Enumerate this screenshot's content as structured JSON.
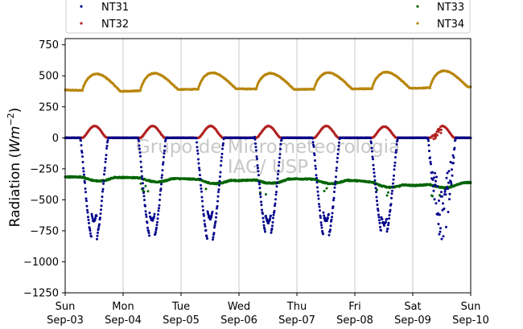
{
  "chart_data": {
    "type": "scatter",
    "title": "",
    "xlabel": "",
    "ylabel": "Radiation (Wm⁻²)",
    "ylabel_parts": {
      "main": "Radiation (",
      "unit": "Wm",
      "exp": "−2",
      "close": ")"
    },
    "ylim": [
      -1250,
      800
    ],
    "yticks": [
      -1250,
      -1000,
      -750,
      -500,
      -250,
      0,
      250,
      500,
      750
    ],
    "ytick_labels": [
      "−1250",
      "−1000",
      "−750",
      "−500",
      "−250",
      "0",
      "250",
      "500",
      "750"
    ],
    "xlim": [
      0,
      7
    ],
    "x_units": "days from Sun Sep-03 00:00",
    "xticks": [
      {
        "x": 0,
        "day": "Sun",
        "date": "Sep-03"
      },
      {
        "x": 1,
        "day": "Mon",
        "date": "Sep-04"
      },
      {
        "x": 2,
        "day": "Tue",
        "date": "Sep-05"
      },
      {
        "x": 3,
        "day": "Wed",
        "date": "Sep-06"
      },
      {
        "x": 4,
        "day": "Thu",
        "date": "Sep-07"
      },
      {
        "x": 5,
        "day": "Fri",
        "date": "Sep-08"
      },
      {
        "x": 6,
        "day": "Sat",
        "date": "Sep-09"
      },
      {
        "x": 7,
        "day": "Sun",
        "date": "Sep-10"
      }
    ],
    "grid": "vertical",
    "legend_placement": "top",
    "watermark": [
      "Grupo de Micrometeorologia",
      "IAG/ USP"
    ],
    "series": [
      {
        "name": "NT31",
        "color": "#00008b",
        "baseline": 0,
        "days": [
          {
            "day": 0,
            "start": 0.26,
            "end": 0.74,
            "min": -860,
            "peak_pos": 0.3,
            "secondary": -610
          },
          {
            "day": 1,
            "start": 0.26,
            "end": 0.74,
            "min": -840,
            "peak_pos": 0.32,
            "secondary": -600
          },
          {
            "day": 2,
            "start": 0.26,
            "end": 0.74,
            "min": -860,
            "peak_pos": 0.32,
            "secondary": -590
          },
          {
            "day": 3,
            "start": 0.27,
            "end": 0.74,
            "min": -810,
            "peak_pos": 0.36,
            "secondary": -620
          },
          {
            "day": 4,
            "start": 0.27,
            "end": 0.74,
            "min": -840,
            "peak_pos": 0.42,
            "secondary": -610
          },
          {
            "day": 5,
            "start": 0.27,
            "end": 0.74,
            "min": -810,
            "peak_pos": 0.38,
            "secondary": -640
          },
          {
            "day": 6,
            "start": 0.26,
            "end": 0.74,
            "min": -830,
            "peak_pos": 0.5,
            "secondary": -500
          }
        ]
      },
      {
        "name": "NT32",
        "color": "#b22222",
        "baseline": 0,
        "days": [
          {
            "day": 0,
            "peak": 95
          },
          {
            "day": 1,
            "peak": 95
          },
          {
            "day": 2,
            "peak": 95
          },
          {
            "day": 3,
            "peak": 95
          },
          {
            "day": 4,
            "peak": 95
          },
          {
            "day": 5,
            "peak": 90
          },
          {
            "day": 6,
            "peak": 95
          }
        ]
      },
      {
        "name": "NT33",
        "color": "#006400",
        "night_levels": [
          -315,
          -320,
          -330,
          -345,
          -330,
          -345,
          -385,
          -360
        ],
        "day_dip": 50
      },
      {
        "name": "NT34",
        "color": "#b8860b",
        "night_levels": [
          385,
          375,
          390,
          395,
          390,
          395,
          400,
          410
        ],
        "day_peaks": [
          515,
          520,
          525,
          520,
          525,
          530,
          540
        ]
      }
    ]
  }
}
